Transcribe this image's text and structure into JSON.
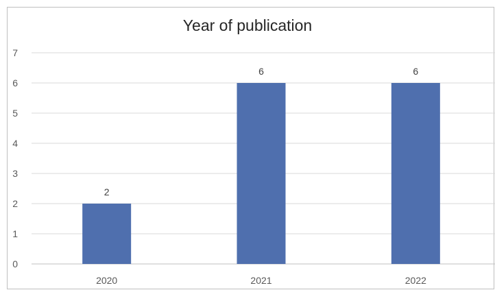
{
  "chart_data": {
    "type": "bar",
    "title": "Year of publication",
    "categories": [
      "2020",
      "2021",
      "2022"
    ],
    "values": [
      2,
      6,
      6
    ],
    "data_labels": [
      "2",
      "6",
      "6"
    ],
    "xlabel": "",
    "ylabel": "",
    "ylim": [
      0,
      7
    ],
    "yticks": [
      "0",
      "1",
      "2",
      "3",
      "4",
      "5",
      "6",
      "7"
    ],
    "grid": true,
    "legend": "none",
    "bar_color": "#4f6fae",
    "grid_color": "#d9d9d9",
    "text_color": "#595959"
  }
}
